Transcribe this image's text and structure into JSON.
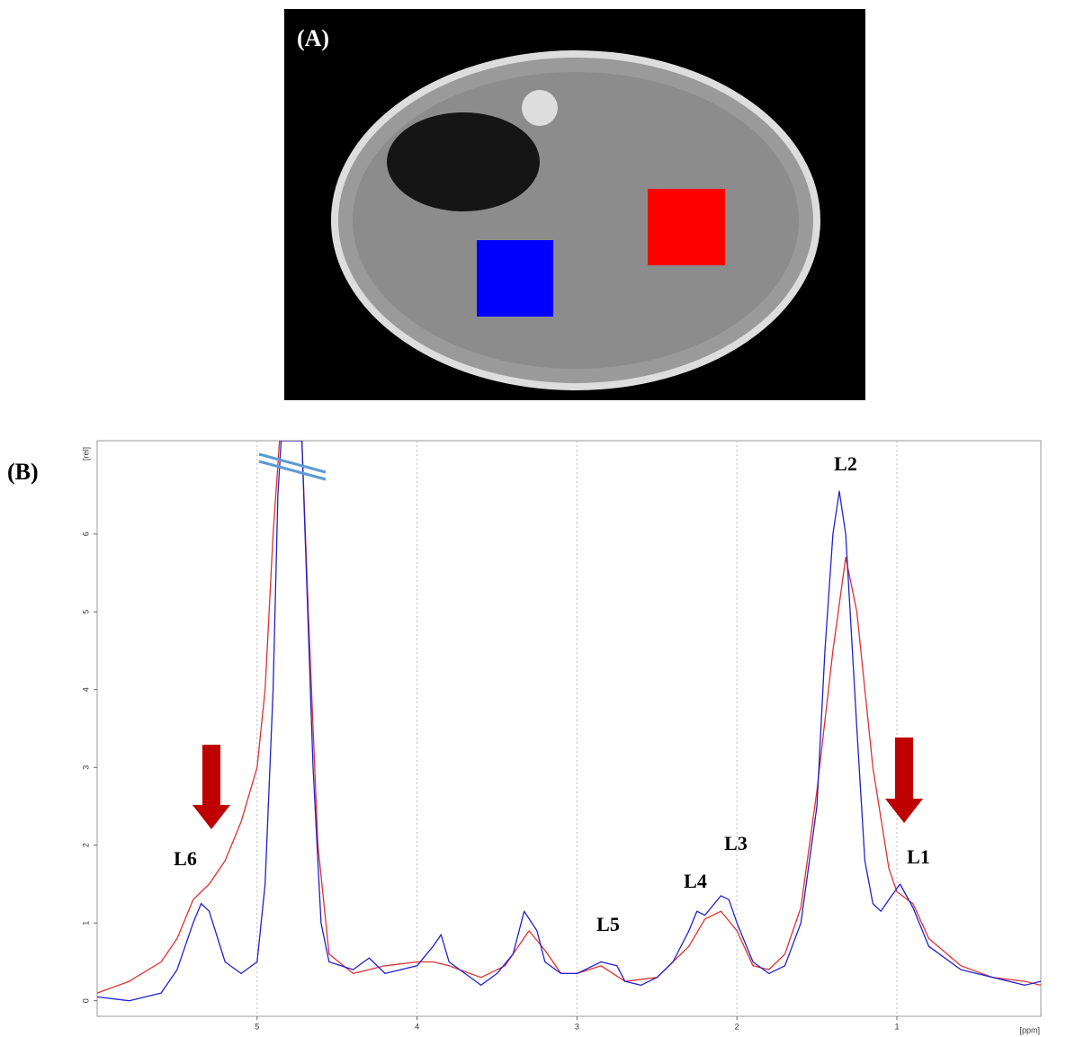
{
  "panel_a": {
    "label": "(A)"
  },
  "chart_data": {
    "type": "line",
    "panel_label": "(B)",
    "y_axis_unit": "[rel]",
    "x_axis_unit": "[ppm]",
    "xlim": [
      6.0,
      0.1
    ],
    "ylim": [
      -0.2,
      7.2
    ],
    "xticks": [
      5,
      4,
      3,
      2,
      1
    ],
    "yticks": [
      0,
      1,
      2,
      3,
      4,
      5,
      6
    ],
    "grid": true,
    "annotations": [
      "L1",
      "L2",
      "L3",
      "L4",
      "L5",
      "L6"
    ],
    "series": [
      {
        "color": "#e03030",
        "x": [
          6.0,
          5.8,
          5.6,
          5.5,
          5.4,
          5.3,
          5.2,
          5.1,
          5.0,
          4.95,
          4.9,
          4.86,
          4.72,
          4.68,
          4.62,
          4.55,
          4.4,
          4.2,
          4.0,
          3.9,
          3.8,
          3.6,
          3.45,
          3.3,
          3.2,
          3.1,
          3.0,
          2.85,
          2.7,
          2.5,
          2.3,
          2.2,
          2.1,
          2.0,
          1.9,
          1.8,
          1.7,
          1.6,
          1.5,
          1.4,
          1.32,
          1.25,
          1.15,
          1.05,
          1.0,
          0.9,
          0.8,
          0.6,
          0.4,
          0.2,
          0.1
        ],
        "values": [
          0.1,
          0.25,
          0.5,
          0.8,
          1.3,
          1.5,
          1.8,
          2.3,
          3.0,
          4.0,
          6.0,
          7.2,
          7.2,
          5.0,
          2.0,
          0.6,
          0.35,
          0.45,
          0.5,
          0.5,
          0.45,
          0.3,
          0.45,
          0.9,
          0.65,
          0.35,
          0.35,
          0.45,
          0.25,
          0.3,
          0.7,
          1.05,
          1.15,
          0.9,
          0.45,
          0.4,
          0.6,
          1.2,
          2.7,
          4.5,
          5.7,
          5.0,
          3.0,
          1.7,
          1.4,
          1.25,
          0.8,
          0.45,
          0.3,
          0.25,
          0.2
        ]
      },
      {
        "color": "#2020d0",
        "x": [
          6.0,
          5.8,
          5.6,
          5.5,
          5.4,
          5.35,
          5.3,
          5.2,
          5.1,
          5.0,
          4.95,
          4.9,
          4.87,
          4.85,
          4.72,
          4.7,
          4.65,
          4.6,
          4.55,
          4.4,
          4.3,
          4.2,
          4.0,
          3.9,
          3.85,
          3.8,
          3.7,
          3.6,
          3.5,
          3.4,
          3.33,
          3.25,
          3.2,
          3.1,
          3.0,
          2.9,
          2.85,
          2.75,
          2.7,
          2.6,
          2.5,
          2.4,
          2.3,
          2.25,
          2.2,
          2.1,
          2.05,
          2.0,
          1.9,
          1.8,
          1.7,
          1.6,
          1.5,
          1.45,
          1.4,
          1.36,
          1.32,
          1.25,
          1.2,
          1.15,
          1.1,
          1.05,
          0.98,
          0.9,
          0.8,
          0.6,
          0.4,
          0.2,
          0.1
        ],
        "values": [
          0.05,
          0.0,
          0.1,
          0.4,
          1.0,
          1.25,
          1.15,
          0.5,
          0.35,
          0.5,
          1.5,
          4.0,
          6.5,
          7.2,
          7.2,
          6.0,
          3.0,
          1.0,
          0.5,
          0.4,
          0.55,
          0.35,
          0.45,
          0.7,
          0.85,
          0.5,
          0.35,
          0.2,
          0.35,
          0.6,
          1.15,
          0.9,
          0.5,
          0.35,
          0.35,
          0.45,
          0.5,
          0.45,
          0.25,
          0.2,
          0.3,
          0.5,
          0.9,
          1.15,
          1.1,
          1.35,
          1.3,
          1.0,
          0.5,
          0.35,
          0.45,
          1.0,
          2.5,
          4.5,
          6.0,
          6.55,
          6.0,
          3.5,
          1.8,
          1.25,
          1.15,
          1.3,
          1.5,
          1.2,
          0.7,
          0.4,
          0.3,
          0.2,
          0.25
        ]
      }
    ]
  }
}
